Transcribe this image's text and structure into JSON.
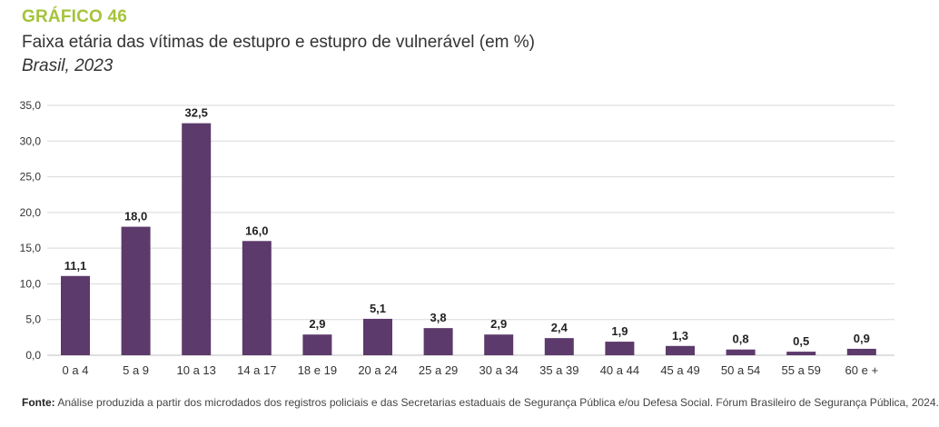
{
  "header": {
    "label": "GRÁFICO 46",
    "title": "Faixa etária das vítimas de estupro e estupro de vulnerável (em %)",
    "subtitle": "Brasil, 2023"
  },
  "source": {
    "prefix": "Fonte:",
    "text": "Análise produzida a partir dos microdados dos registros policiais e das Secretarias estaduais de Segurança Pública e/ou Defesa Social. Fórum Brasileiro de Segurança Pública, 2024."
  },
  "colors": {
    "bar": "#5c3a6b",
    "label_accent": "#a5c33a",
    "grid": "#d9d9d9"
  },
  "chart_data": {
    "type": "bar",
    "categories": [
      "0 a 4",
      "5 a 9",
      "10 a 13",
      "14 a 17",
      "18 e 19",
      "20 a 24",
      "25 a 29",
      "30 a 34",
      "35 a 39",
      "40 a 44",
      "45 a 49",
      "50 a 54",
      "55 a 59",
      "60 e +"
    ],
    "values": [
      11.1,
      18.0,
      32.5,
      16.0,
      2.9,
      5.1,
      3.8,
      2.9,
      2.4,
      1.9,
      1.3,
      0.8,
      0.5,
      0.9
    ],
    "value_labels": [
      "11,1",
      "18,0",
      "32,5",
      "16,0",
      "2,9",
      "5,1",
      "3,8",
      "2,9",
      "2,4",
      "1,9",
      "1,3",
      "0,8",
      "0,5",
      "0,9"
    ],
    "yticks": [
      0,
      5,
      10,
      15,
      20,
      25,
      30,
      35
    ],
    "ytick_labels": [
      "0,0",
      "5,0",
      "10,0",
      "15,0",
      "20,0",
      "25,0",
      "30,0",
      "35,0"
    ],
    "ylim": [
      0,
      35
    ],
    "grid": true,
    "xlabel": "",
    "ylabel": ""
  }
}
